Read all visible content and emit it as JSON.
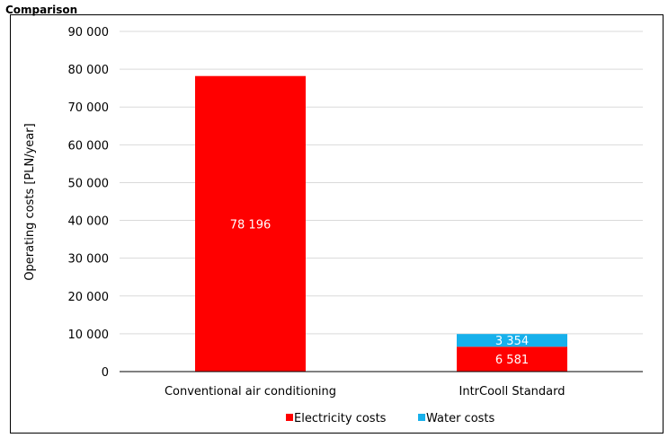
{
  "heading": "Comparison",
  "colors": {
    "electricity": "#ff0000",
    "water": "#17b0eb",
    "grid": "#d9d9d9",
    "axis": "#000000",
    "bar_label": "#ffffff"
  },
  "chart_data": {
    "type": "bar",
    "stacked": true,
    "categories": [
      "Conventional air conditioning",
      "IntrCooll Standard"
    ],
    "series": [
      {
        "name": "Electricity costs",
        "values": [
          78196,
          6581
        ],
        "labels": [
          "78 196",
          "6 581"
        ]
      },
      {
        "name": "Water costs",
        "values": [
          0,
          3354
        ],
        "labels": [
          "",
          "3 354"
        ]
      }
    ],
    "ylabel": "Operating costs [PLN/year]",
    "xlabel": "",
    "ylim": [
      0,
      90000
    ],
    "yticks": [
      0,
      10000,
      20000,
      30000,
      40000,
      50000,
      60000,
      70000,
      80000,
      90000
    ],
    "ytick_labels": [
      "0",
      "10 000",
      "20 000",
      "30 000",
      "40 000",
      "50 000",
      "60 000",
      "70 000",
      "80 000",
      "90 000"
    ],
    "grid": true,
    "legend": "bottom"
  }
}
